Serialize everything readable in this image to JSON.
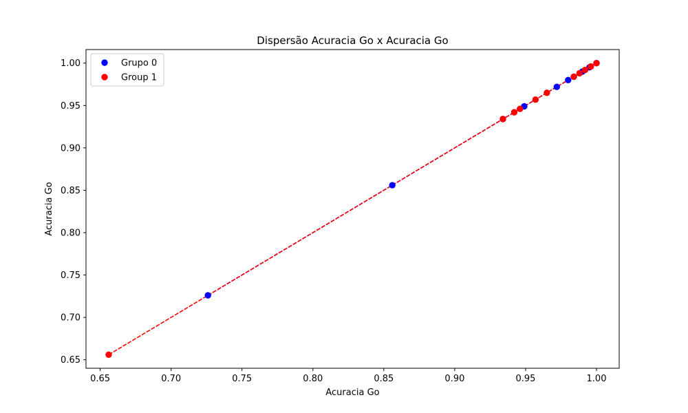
{
  "chart_data": {
    "type": "scatter",
    "title": "Dispersão Acuracia Go x Acuracia Go",
    "xlabel": "Acuracia Go",
    "ylabel": "Acuracia Go",
    "xlim": [
      0.64,
      1.016
    ],
    "ylim": [
      0.64,
      1.016
    ],
    "x_ticks": [
      "0.65",
      "0.70",
      "0.75",
      "0.80",
      "0.85",
      "0.90",
      "0.95",
      "1.00"
    ],
    "y_ticks": [
      "0.65",
      "0.70",
      "0.75",
      "0.80",
      "0.85",
      "0.90",
      "0.95",
      "1.00"
    ],
    "grid": false,
    "legend_position": "top-left",
    "series": [
      {
        "name": "Grupo 0",
        "color": "#0000ff",
        "marker": "circle",
        "points": [
          [
            0.726,
            0.726
          ],
          [
            0.856,
            0.856
          ],
          [
            0.934,
            0.934
          ],
          [
            0.949,
            0.949
          ],
          [
            0.972,
            0.972
          ],
          [
            0.98,
            0.98
          ],
          [
            0.984,
            0.984
          ],
          [
            0.99,
            0.99
          ],
          [
            0.995,
            0.995
          ],
          [
            1.0,
            1.0
          ]
        ]
      },
      {
        "name": "Group 1",
        "color": "#ff0000",
        "marker": "circle",
        "points": [
          [
            0.656,
            0.656
          ],
          [
            0.934,
            0.934
          ],
          [
            0.942,
            0.942
          ],
          [
            0.946,
            0.946
          ],
          [
            0.957,
            0.957
          ],
          [
            0.965,
            0.965
          ],
          [
            0.984,
            0.984
          ],
          [
            0.988,
            0.988
          ],
          [
            0.992,
            0.992
          ],
          [
            0.996,
            0.996
          ],
          [
            1.0,
            1.0
          ]
        ]
      }
    ],
    "lines": [
      {
        "color": "#0000ff",
        "style": "dashed",
        "from": [
          0.726,
          0.726
        ],
        "to": [
          1.0,
          1.0
        ]
      },
      {
        "color": "#ff0000",
        "style": "dashed",
        "from": [
          0.656,
          0.656
        ],
        "to": [
          1.0,
          1.0
        ]
      }
    ]
  }
}
